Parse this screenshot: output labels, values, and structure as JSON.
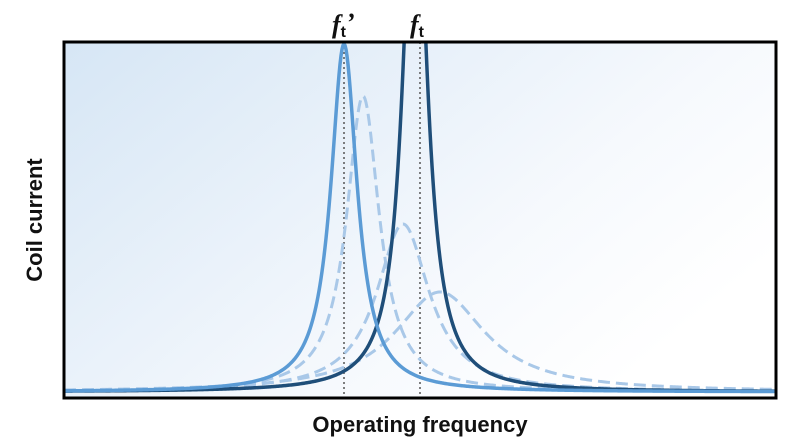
{
  "axes": {
    "y_label": "Coil current",
    "x_label": "Operating frequency"
  },
  "markers": [
    {
      "symbol": "f",
      "subscript": "t",
      "suffix": "’"
    },
    {
      "symbol": "f",
      "subscript": "t"
    }
  ]
}
